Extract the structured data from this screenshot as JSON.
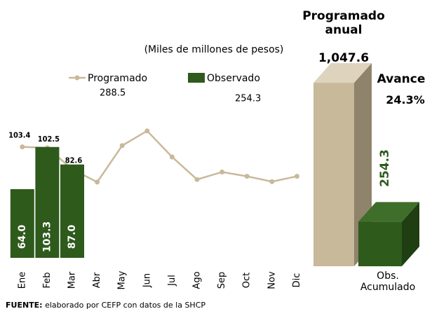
{
  "chart_data": [
    {
      "type": "bar-line",
      "subtitle": "(Miles de millones de pesos)",
      "categories": [
        "Ene",
        "Feb",
        "Mar",
        "Abr",
        "May",
        "Jun",
        "Jul",
        "Ago",
        "Sep",
        "Oct",
        "Nov",
        "Dic"
      ],
      "ylim": [
        0,
        190
      ],
      "series": [
        {
          "name": "Programado",
          "mark": "line",
          "color": "#c8b99a",
          "total": 288.5,
          "values": [
            103.4,
            102.5,
            82.6,
            70.6,
            104.6,
            118.3,
            94,
            73,
            80,
            76,
            71,
            76
          ],
          "value_labels": [
            "103.4",
            "102.5",
            "82.6",
            null,
            null,
            null,
            null,
            null,
            null,
            null,
            null,
            null
          ]
        },
        {
          "name": "Observado",
          "mark": "bar",
          "color": "#2e5a1c",
          "total": 254.3,
          "values": [
            64,
            103.3,
            87,
            null,
            null,
            null,
            null,
            null,
            null,
            null,
            null,
            null
          ],
          "value_labels": [
            "64.0",
            "103.3",
            "87.0",
            null,
            null,
            null,
            null,
            null,
            null,
            null,
            null,
            null
          ]
        }
      ]
    },
    {
      "type": "bar3d",
      "categories": [
        "Programado anual",
        "Obs. Acumulado"
      ],
      "values": [
        1047.6,
        254.3
      ],
      "value_labels": [
        "1,047.6",
        "254.3"
      ],
      "colors": [
        "#c8b99a",
        "#2e5a1c"
      ],
      "ylim": [
        0,
        1100
      ],
      "annotation": {
        "label": "Avance",
        "value": 24.3,
        "value_label": "24.3%"
      }
    }
  ],
  "source": {
    "label": "FUENTE:",
    "text": "elaborado por CEFP con datos de la SHCP"
  }
}
